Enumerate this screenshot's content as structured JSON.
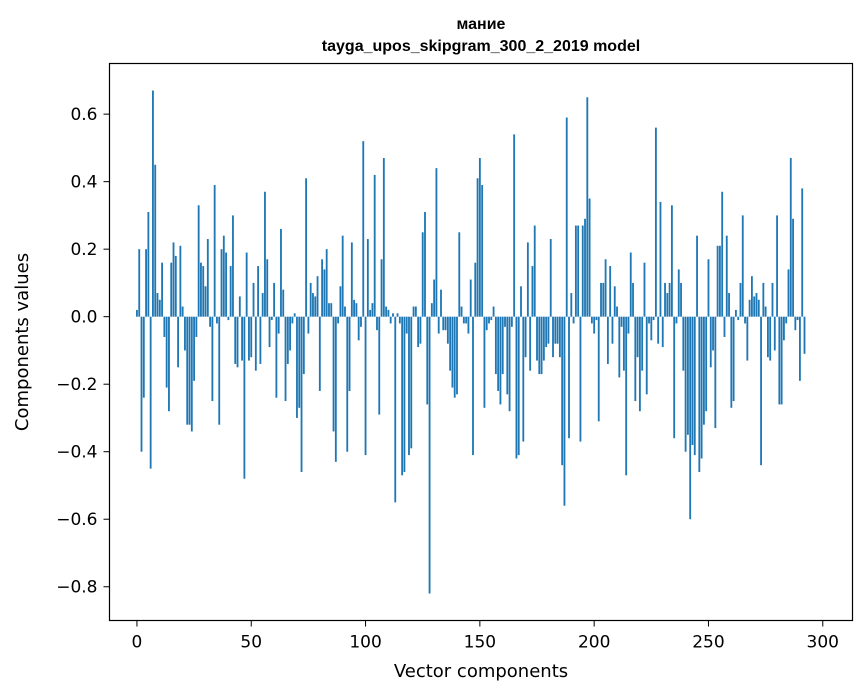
{
  "chart_data": {
    "type": "bar",
    "title": "мание",
    "subtitle": "tayga_upos_skipgram_300_2_2019 model",
    "xlabel": "Vector components",
    "ylabel": "Components values",
    "xlim": [
      -12,
      313
    ],
    "ylim": [
      -0.9,
      0.75
    ],
    "xticks": [
      0,
      50,
      100,
      150,
      200,
      250,
      300
    ],
    "xtick_labels": [
      "0",
      "50",
      "100",
      "150",
      "200",
      "250",
      "300"
    ],
    "yticks": [
      -0.8,
      -0.6,
      -0.4,
      -0.2,
      0.0,
      0.2,
      0.4,
      0.6
    ],
    "ytick_labels": [
      "−0.8",
      "−0.6",
      "−0.4",
      "−0.2",
      "0.0",
      "0.2",
      "0.4",
      "0.6"
    ],
    "bar_color": "#1f77b4",
    "values": [
      0.02,
      0.2,
      -0.4,
      -0.24,
      0.2,
      0.31,
      -0.45,
      0.67,
      0.45,
      0.07,
      0.05,
      0.16,
      -0.06,
      -0.21,
      -0.28,
      0.16,
      0.22,
      0.18,
      -0.15,
      0.21,
      0.03,
      -0.1,
      -0.32,
      -0.32,
      -0.34,
      -0.19,
      -0.06,
      0.33,
      0.16,
      0.15,
      0.09,
      0.23,
      -0.03,
      -0.25,
      0.39,
      -0.02,
      -0.32,
      0.2,
      0.24,
      0.19,
      -0.01,
      0.15,
      0.3,
      -0.14,
      -0.15,
      0.06,
      -0.13,
      -0.48,
      0.19,
      -0.13,
      -0.12,
      0.1,
      -0.16,
      0.15,
      -0.14,
      0.07,
      0.37,
      0.17,
      -0.09,
      -0.01,
      0.1,
      -0.24,
      -0.05,
      0.26,
      0.08,
      -0.25,
      -0.14,
      -0.1,
      -0.02,
      0.01,
      -0.3,
      -0.27,
      -0.46,
      -0.17,
      0.41,
      -0.05,
      0.1,
      0.07,
      0.06,
      0.12,
      -0.22,
      0.17,
      0.14,
      0.2,
      0.04,
      0.04,
      -0.34,
      -0.43,
      -0.02,
      0.09,
      0.24,
      0.03,
      -0.4,
      -0.22,
      0.22,
      0.05,
      0.04,
      -0.07,
      -0.03,
      0.52,
      -0.41,
      0.23,
      0.02,
      0.04,
      0.42,
      -0.04,
      -0.29,
      0.17,
      0.47,
      0.03,
      0.02,
      -0.02,
      0.01,
      -0.55,
      0.01,
      -0.02,
      -0.47,
      -0.46,
      -0.05,
      -0.41,
      -0.39,
      0.03,
      0.03,
      -0.09,
      -0.08,
      0.25,
      0.31,
      -0.26,
      -0.82,
      0.04,
      0.11,
      0.44,
      -0.05,
      0.08,
      -0.04,
      -0.04,
      -0.08,
      -0.16,
      -0.21,
      -0.24,
      -0.23,
      0.25,
      0.03,
      -0.02,
      -0.02,
      -0.05,
      0.11,
      -0.41,
      0.16,
      0.41,
      0.47,
      0.39,
      -0.27,
      -0.04,
      -0.02,
      -0.01,
      0.03,
      -0.17,
      -0.22,
      -0.26,
      -0.17,
      -0.03,
      -0.23,
      -0.28,
      -0.03,
      0.54,
      -0.42,
      -0.41,
      0.09,
      -0.37,
      -0.12,
      0.22,
      -0.16,
      0.15,
      0.27,
      -0.13,
      -0.17,
      -0.17,
      -0.13,
      -0.09,
      -0.08,
      0.23,
      -0.12,
      -0.08,
      -0.08,
      -0.12,
      -0.44,
      -0.56,
      0.59,
      -0.36,
      0.07,
      -0.02,
      0.27,
      0.27,
      -0.37,
      0.27,
      0.29,
      0.65,
      0.35,
      -0.02,
      -0.05,
      -0.01,
      -0.31,
      0.1,
      0.1,
      0.17,
      -0.14,
      0.15,
      -0.08,
      0.09,
      0.03,
      -0.18,
      -0.03,
      -0.16,
      -0.47,
      -0.05,
      0.19,
      0.1,
      -0.25,
      -0.12,
      -0.28,
      -0.16,
      0.16,
      -0.23,
      -0.02,
      -0.07,
      -0.01,
      0.56,
      -0.08,
      0.34,
      -0.09,
      0.1,
      0.07,
      0.1,
      0.33,
      -0.36,
      -0.02,
      0.14,
      0.1,
      -0.16,
      -0.4,
      -0.35,
      -0.6,
      -0.38,
      -0.41,
      0.24,
      -0.46,
      -0.42,
      -0.32,
      -0.28,
      0.17,
      -0.15,
      -0.1,
      -0.33,
      0.21,
      0.21,
      0.37,
      -0.06,
      0.24,
      0.07,
      -0.27,
      -0.25,
      0.02,
      -0.01,
      0.1,
      0.3,
      -0.02,
      -0.13,
      0.05,
      0.12,
      0.06,
      0.07,
      0.05,
      -0.44,
      0.1,
      0.03,
      -0.12,
      -0.13,
      0.1,
      -0.1,
      0.3,
      -0.26,
      -0.26,
      -0.07,
      -0.02,
      0.14,
      0.47,
      0.29,
      -0.04,
      -0.01,
      -0.19,
      0.38,
      -0.11
    ]
  }
}
